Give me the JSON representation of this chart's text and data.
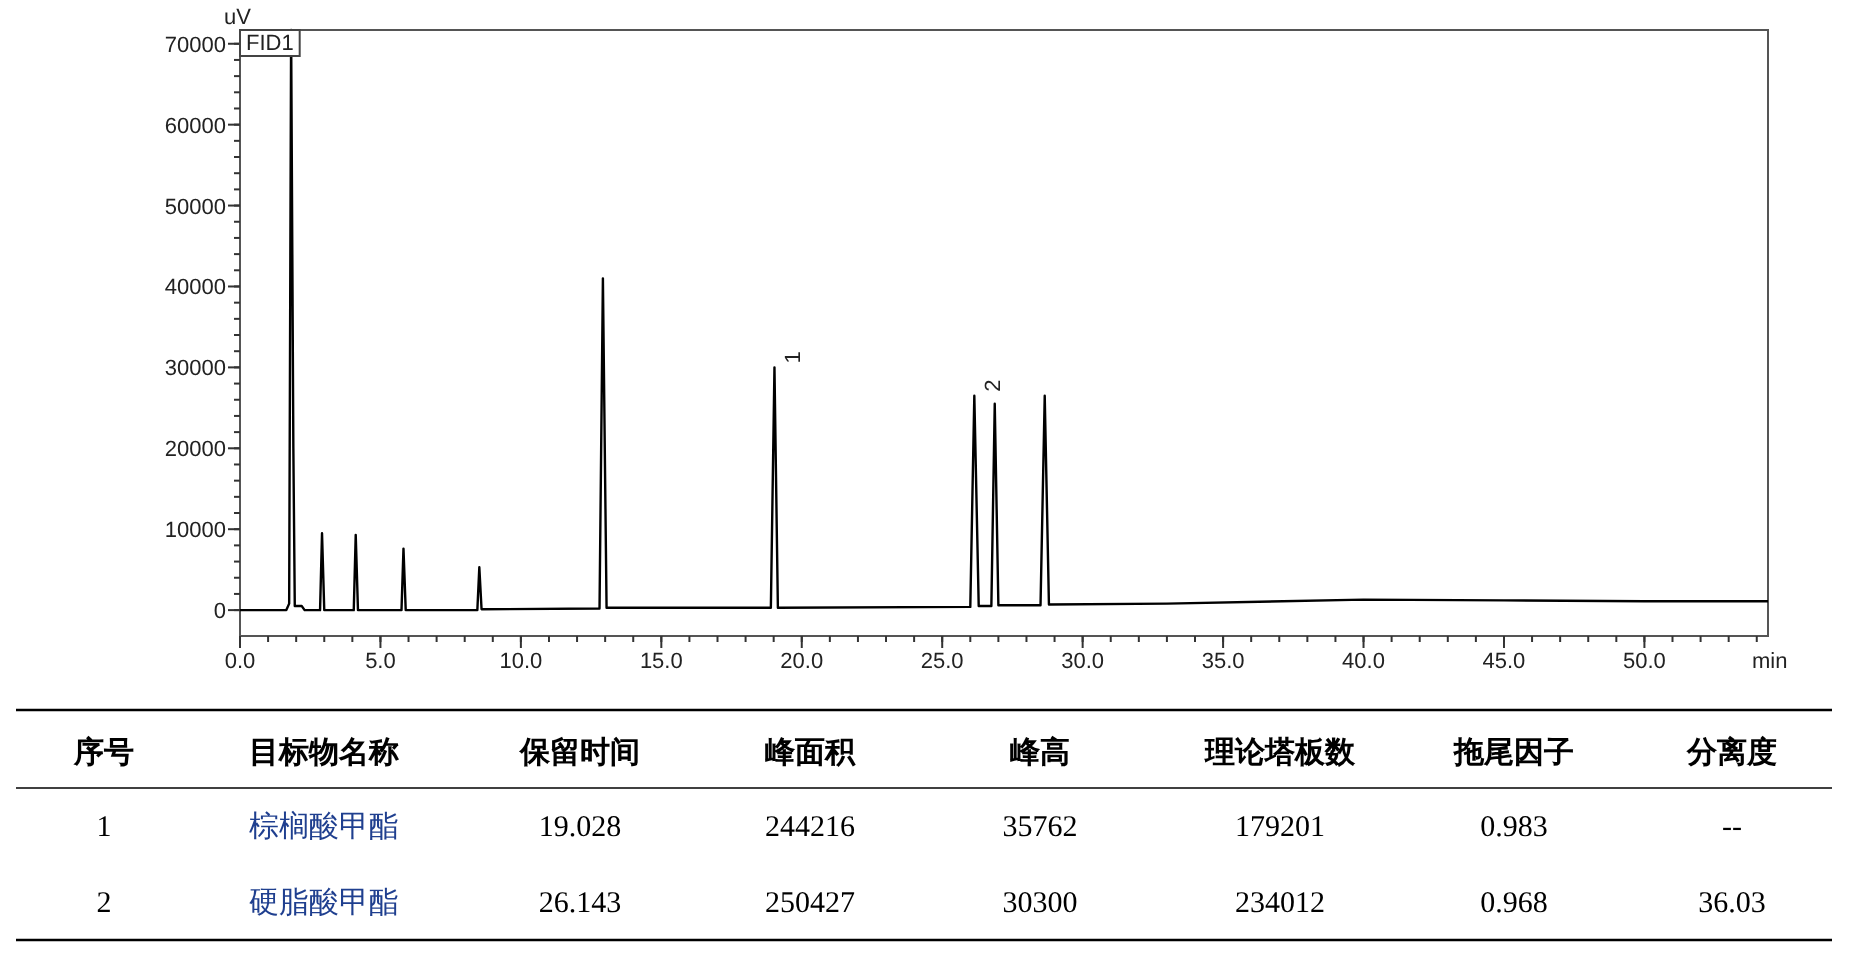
{
  "chart_data": [
    {
      "type": "line",
      "xlabel": "min",
      "ylabel": "uV",
      "color": "#000000",
      "x": [
        0,
        1.65,
        1.75,
        1.82,
        1.9,
        1.95,
        2.2,
        2.3,
        2.85,
        2.92,
        3.0,
        4.05,
        4.12,
        4.2,
        5.75,
        5.82,
        5.9,
        8.45,
        8.52,
        8.6,
        12.8,
        12.92,
        13.05,
        18.9,
        19.028,
        19.15,
        26.0,
        26.143,
        26.3,
        26.75,
        26.87,
        27.0,
        28.5,
        28.65,
        28.8,
        33,
        40,
        45,
        50,
        54.4
      ],
      "values": [
        0,
        0,
        800,
        71700,
        20000,
        500,
        500,
        0,
        0,
        9500,
        0,
        0,
        9300,
        0,
        0,
        7600,
        0,
        0,
        5300,
        100,
        200,
        41000,
        300,
        300,
        30000,
        300,
        400,
        26500,
        500,
        500,
        25500,
        600,
        600,
        26500,
        700,
        800,
        1300,
        1200,
        1100,
        1100
      ],
      "xlim": [
        0,
        54.4
      ],
      "ylim": [
        -3200,
        71700
      ],
      "xticks": [
        {
          "value": 0,
          "label": "0.0"
        },
        {
          "value": 5,
          "label": "5.0"
        },
        {
          "value": 10,
          "label": "10.0"
        },
        {
          "value": 15,
          "label": "15.0"
        },
        {
          "value": 20,
          "label": "20.0"
        },
        {
          "value": 25,
          "label": "25.0"
        },
        {
          "value": 30,
          "label": "30.0"
        },
        {
          "value": 35,
          "label": "35.0"
        },
        {
          "value": 40,
          "label": "40.0"
        },
        {
          "value": 45,
          "label": "45.0"
        },
        {
          "value": 50,
          "label": "50.0"
        }
      ],
      "yticks": [
        0,
        10000,
        20000,
        30000,
        40000,
        50000,
        60000,
        70000
      ],
      "annotations": [
        "FID1",
        {
          "text": "1",
          "x": 19.028,
          "y": 30000
        },
        {
          "text": "2",
          "x": 26.143,
          "y": 26500
        }
      ]
    },
    {
      "type": "other",
      "annotations": [
        "序号",
        "目标物名称",
        "保留时间",
        "峰面积",
        "峰高",
        "理论塔板数",
        "拖尾因子",
        "分离度",
        "1",
        "棕榈酸甲酯",
        "19.028",
        "244216",
        "35762",
        "179201",
        "0.983",
        "--",
        "2",
        "硬脂酸甲酯",
        "26.143",
        "250427",
        "30300",
        "234012",
        "0.968",
        "36.03"
      ]
    }
  ]
}
